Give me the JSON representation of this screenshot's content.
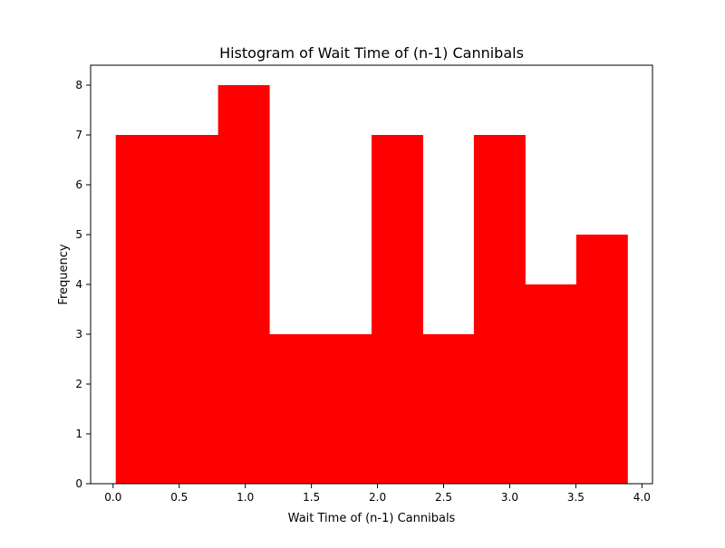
{
  "chart_data": {
    "type": "bar",
    "title": "Histogram of Wait Time of (n-1) Cannibals",
    "xlabel": "Wait Time of (n-1) Cannibals",
    "ylabel": "Frequency",
    "bin_edges": [
      0.02,
      0.407,
      0.794,
      1.181,
      1.568,
      1.955,
      2.342,
      2.729,
      3.116,
      3.503,
      3.89
    ],
    "values": [
      7,
      7,
      8,
      3,
      3,
      7,
      3,
      7,
      4,
      5
    ],
    "xlim": [
      -0.17,
      4.08
    ],
    "ylim": [
      0,
      8.4
    ],
    "xticks": [
      0.0,
      0.5,
      1.0,
      1.5,
      2.0,
      2.5,
      3.0,
      3.5,
      4.0
    ],
    "xtick_labels": [
      "0.0",
      "0.5",
      "1.0",
      "1.5",
      "2.0",
      "2.5",
      "3.0",
      "3.5",
      "4.0"
    ],
    "yticks": [
      0,
      1,
      2,
      3,
      4,
      5,
      6,
      7,
      8
    ],
    "ytick_labels": [
      "0",
      "1",
      "2",
      "3",
      "4",
      "5",
      "6",
      "7",
      "8"
    ],
    "bar_color": "#ff0000",
    "grid": false,
    "legend": "none"
  }
}
